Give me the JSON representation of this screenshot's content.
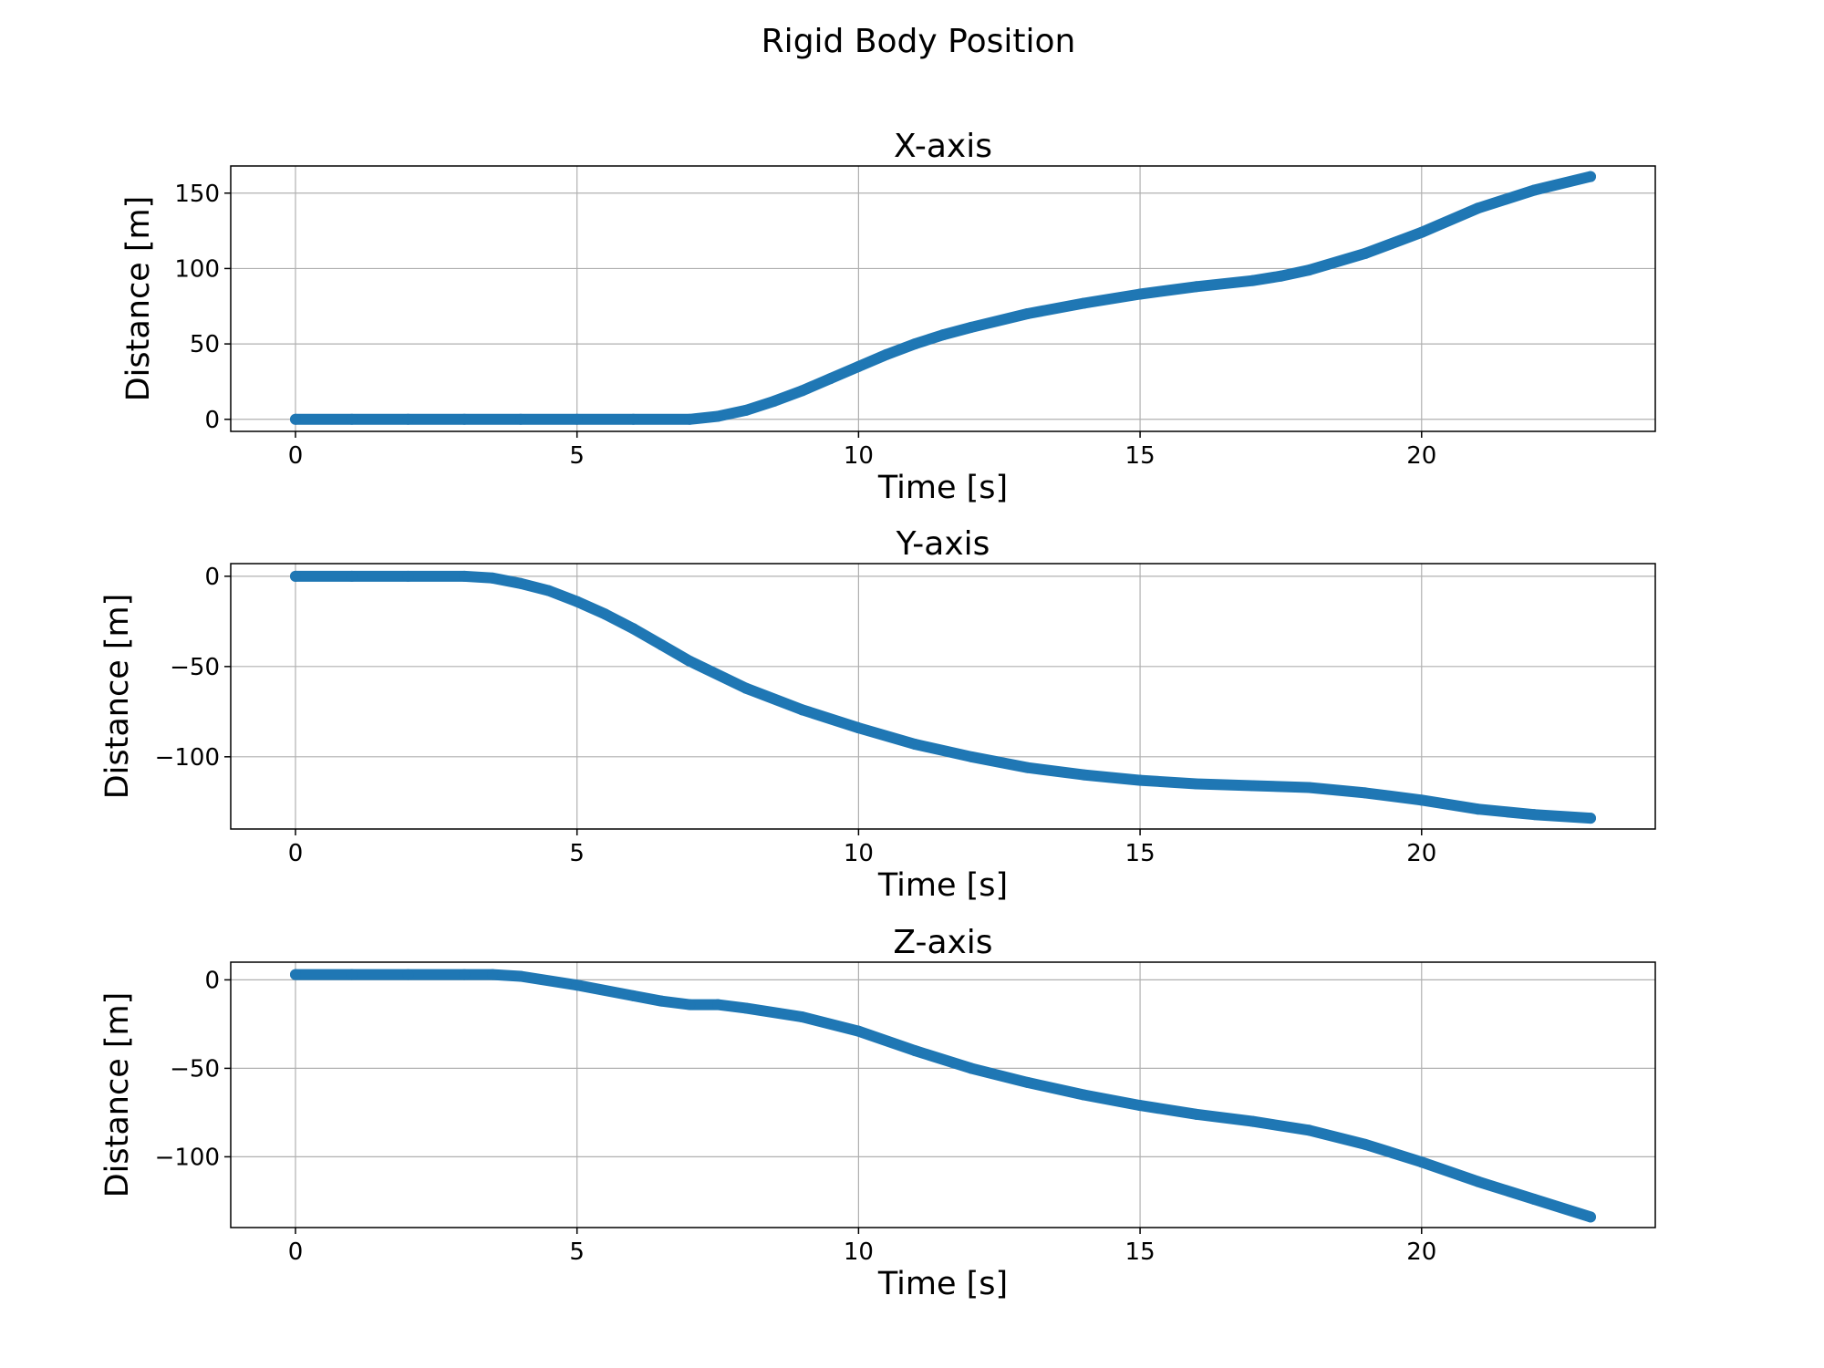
{
  "figure": {
    "title": "Rigid Body Position"
  },
  "chart_data": [
    {
      "type": "scatter",
      "title": "X-axis",
      "xlabel": "Time [s]",
      "ylabel": "Distance [m]",
      "xlim": [
        -1.15,
        24.15
      ],
      "ylim": [
        -8,
        168
      ],
      "xticks": [
        0,
        5,
        10,
        15,
        20
      ],
      "yticks": [
        0,
        50,
        100,
        150
      ],
      "grid": true,
      "color": "#1f77b4",
      "x": [
        0,
        1,
        2,
        3,
        4,
        5,
        6,
        7,
        7.5,
        8,
        8.5,
        9,
        9.5,
        10,
        10.5,
        11,
        11.5,
        12,
        13,
        14,
        15,
        16,
        17,
        17.5,
        18,
        19,
        20,
        21,
        22,
        23
      ],
      "y": [
        0,
        0,
        0,
        0,
        0,
        0,
        0,
        0,
        2,
        6,
        12,
        19,
        27,
        35,
        43,
        50,
        56,
        61,
        70,
        77,
        83,
        88,
        92,
        95,
        99,
        110,
        124,
        140,
        152,
        161
      ]
    },
    {
      "type": "scatter",
      "title": "Y-axis",
      "xlabel": "Time [s]",
      "ylabel": "Distance [m]",
      "xlim": [
        -1.15,
        24.15
      ],
      "ylim": [
        -140,
        7
      ],
      "xticks": [
        0,
        5,
        10,
        15,
        20
      ],
      "yticks": [
        0,
        -50,
        -100
      ],
      "ytick_labels": [
        "0",
        "−50",
        "−100"
      ],
      "grid": true,
      "color": "#1f77b4",
      "x": [
        0,
        1,
        2,
        3,
        3.5,
        4,
        4.5,
        5,
        5.5,
        6,
        6.5,
        7,
        8,
        9,
        10,
        11,
        12,
        13,
        14,
        15,
        16,
        17,
        18,
        19,
        20,
        21,
        22,
        23
      ],
      "y": [
        0,
        0,
        0,
        0,
        -1,
        -4,
        -8,
        -14,
        -21,
        -29,
        -38,
        -47,
        -62,
        -74,
        -84,
        -93,
        -100,
        -106,
        -110,
        -113,
        -115,
        -116,
        -117,
        -120,
        -124,
        -129,
        -132,
        -134
      ]
    },
    {
      "type": "scatter",
      "title": "Z-axis",
      "xlabel": "Time [s]",
      "ylabel": "Distance [m]",
      "xlim": [
        -1.15,
        24.15
      ],
      "ylim": [
        -140,
        10
      ],
      "xticks": [
        0,
        5,
        10,
        15,
        20
      ],
      "yticks": [
        0,
        -50,
        -100
      ],
      "ytick_labels": [
        "0",
        "−50",
        "−100"
      ],
      "grid": true,
      "color": "#1f77b4",
      "x": [
        0,
        1,
        2,
        3,
        3.5,
        4,
        5,
        6,
        6.5,
        7,
        7.5,
        8,
        9,
        10,
        11,
        12,
        13,
        14,
        15,
        16,
        17,
        18,
        19,
        20,
        21,
        22,
        23
      ],
      "y": [
        3,
        3,
        3,
        3,
        3,
        2,
        -3,
        -9,
        -12,
        -14,
        -14,
        -16,
        -21,
        -29,
        -40,
        -50,
        -58,
        -65,
        -71,
        -76,
        -80,
        -85,
        -93,
        -103,
        -114,
        -124,
        -134
      ]
    }
  ]
}
